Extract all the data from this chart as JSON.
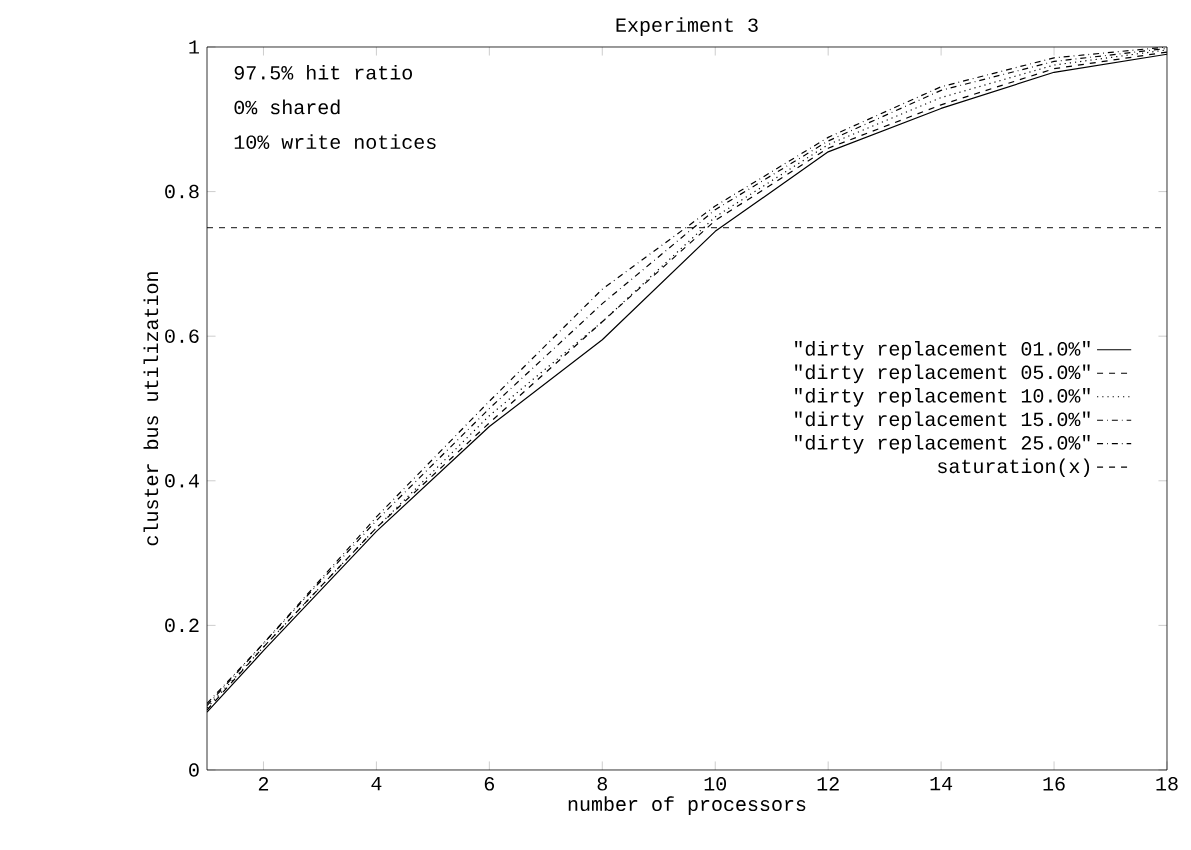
{
  "chart_data": {
    "type": "line",
    "title": "Experiment 3",
    "xlabel": "number of processors",
    "ylabel": "cluster bus utilization",
    "annotations": [
      "97.5% hit ratio",
      "0% shared",
      "10% write notices"
    ],
    "x": [
      1,
      2,
      4,
      6,
      8,
      10,
      12,
      14,
      16,
      18
    ],
    "series": [
      {
        "name": "\"dirty replacement 01.0%\"",
        "color": "#000000",
        "line_style": "solid",
        "values": [
          0.08,
          0.165,
          0.33,
          0.475,
          0.595,
          0.745,
          0.855,
          0.915,
          0.965,
          0.99
        ]
      },
      {
        "name": "\"dirty replacement 05.0%\"",
        "color": "#000000",
        "line_style": "dashed",
        "values": [
          0.083,
          0.17,
          0.335,
          0.48,
          0.62,
          0.76,
          0.86,
          0.92,
          0.97,
          0.993
        ]
      },
      {
        "name": "\"dirty replacement 10.0%\"",
        "color": "#000000",
        "line_style": "dotted",
        "values": [
          0.086,
          0.17,
          0.335,
          0.49,
          0.62,
          0.765,
          0.865,
          0.93,
          0.975,
          0.996
        ]
      },
      {
        "name": "\"dirty replacement 15.0%\"",
        "color": "#000000",
        "line_style": "dashdot",
        "values": [
          0.089,
          0.175,
          0.345,
          0.5,
          0.645,
          0.775,
          0.87,
          0.94,
          0.98,
          0.998
        ]
      },
      {
        "name": "\"dirty replacement 25.0%\"",
        "color": "#000000",
        "line_style": "dashdot",
        "values": [
          0.092,
          0.175,
          0.35,
          0.51,
          0.665,
          0.78,
          0.875,
          0.945,
          0.985,
          1.0
        ]
      },
      {
        "name": "saturation(x)",
        "color": "#000000",
        "line_style": "dashed",
        "x": [
          1,
          18
        ],
        "values": [
          0.75,
          0.75
        ]
      }
    ],
    "xlim": [
      1,
      18
    ],
    "ylim": [
      0,
      1
    ],
    "xticks": [
      2,
      4,
      6,
      8,
      10,
      12,
      14,
      16,
      18
    ],
    "yticks": [
      0,
      0.2,
      0.4,
      0.6,
      0.8,
      1
    ],
    "grid": false,
    "legend": "right",
    "marker": "none"
  }
}
